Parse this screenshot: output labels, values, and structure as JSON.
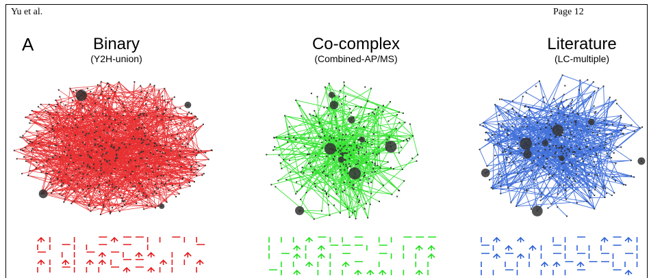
{
  "header": {
    "authors": "Yu et al.",
    "page": "Page 12"
  },
  "figure": {
    "panel_label": "A",
    "networks": [
      {
        "title": "Binary",
        "subtitle": "(Y2H-union)",
        "color": "#e41a1c"
      },
      {
        "title": "Co-complex",
        "subtitle": "(Combined-AP/MS)",
        "color": "#22e01e"
      },
      {
        "title": "Literature",
        "subtitle": "(LC-multiple)",
        "color": "#2e62d6"
      }
    ]
  }
}
